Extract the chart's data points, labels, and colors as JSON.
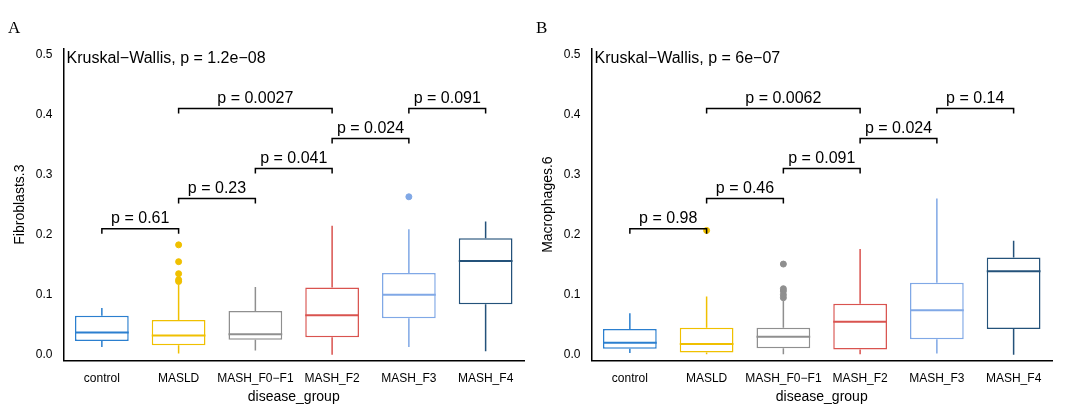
{
  "chart_data": [
    {
      "type": "box",
      "title": "A",
      "xlabel": "disease_group",
      "ylabel": "Fibroblasts.3",
      "categories": [
        "control",
        "MASLD",
        "MASH_F0−F1",
        "MASH_F2",
        "MASH_F3",
        "MASH_F4"
      ],
      "colors": [
        "#2b7fcf",
        "#f0c000",
        "#8f8f8f",
        "#d9534f",
        "#80a8e6",
        "#24527a"
      ],
      "boxes": [
        {
          "low": 0.013,
          "q1": 0.023,
          "median": 0.037,
          "q3": 0.065,
          "high": 0.078
        },
        {
          "low": 0.002,
          "q1": 0.016,
          "median": 0.032,
          "q3": 0.058,
          "high": 0.117,
          "outliers": [
            0.122,
            0.125,
            0.135,
            0.155,
            0.183
          ]
        },
        {
          "low": 0.007,
          "q1": 0.025,
          "median": 0.034,
          "q3": 0.073,
          "high": 0.113
        },
        {
          "low": 0.0,
          "q1": 0.029,
          "median": 0.066,
          "q3": 0.112,
          "high": 0.215
        },
        {
          "low": 0.013,
          "q1": 0.061,
          "median": 0.1,
          "q3": 0.136,
          "high": 0.209,
          "outliers": [
            0.263
          ]
        },
        {
          "low": 0.006,
          "q1": 0.084,
          "median": 0.156,
          "q3": 0.194,
          "high": 0.222
        }
      ],
      "ylim": [
        -0.01,
        0.51
      ],
      "yticks": [
        {
          "value": 0,
          "label": "0.0"
        },
        {
          "value": 0.1,
          "label": "0.1"
        },
        {
          "value": 0.2,
          "label": "0.2"
        },
        {
          "value": 0.3,
          "label": "0.3"
        },
        {
          "value": 0.4,
          "label": "0.4"
        },
        {
          "value": 0.5,
          "label": "0.5"
        }
      ],
      "grid": false,
      "legend": false,
      "annotations": [
        "Kruskal−Wallis, p = 1.2e−08",
        "p = 0.61",
        "p = 0.23",
        "p = 0.041",
        "p = 0.024",
        "p = 0.091",
        "p = 0.0027"
      ]
    },
    {
      "type": "box",
      "title": "B",
      "xlabel": "disease_group",
      "ylabel": "Macrophages.6",
      "categories": [
        "control",
        "MASLD",
        "MASH_F0−F1",
        "MASH_F2",
        "MASH_F3",
        "MASH_F4"
      ],
      "colors": [
        "#2b7fcf",
        "#f0c000",
        "#8f8f8f",
        "#d9534f",
        "#80a8e6",
        "#24527a"
      ],
      "boxes": [
        {
          "low": 0.003,
          "q1": 0.01,
          "median": 0.02,
          "q3": 0.043,
          "high": 0.069
        },
        {
          "low": 0.001,
          "q1": 0.004,
          "median": 0.018,
          "q3": 0.045,
          "high": 0.097,
          "outliers": [
            0.207
          ]
        },
        {
          "low": 0.001,
          "q1": 0.011,
          "median": 0.03,
          "q3": 0.045,
          "high": 0.09,
          "outliers": [
            0.095,
            0.1,
            0.106,
            0.11,
            0.151
          ]
        },
        {
          "low": 0.001,
          "q1": 0.009,
          "median": 0.055,
          "q3": 0.085,
          "high": 0.176
        },
        {
          "low": 0.002,
          "q1": 0.026,
          "median": 0.074,
          "q3": 0.12,
          "high": 0.26
        },
        {
          "low": 0.0,
          "q1": 0.043,
          "median": 0.139,
          "q3": 0.162,
          "high": 0.19
        }
      ],
      "ylim": [
        -0.01,
        0.51
      ],
      "yticks": [
        {
          "value": 0,
          "label": "0.0"
        },
        {
          "value": 0.1,
          "label": "0.1"
        },
        {
          "value": 0.2,
          "label": "0.2"
        },
        {
          "value": 0.3,
          "label": "0.3"
        },
        {
          "value": 0.4,
          "label": "0.4"
        },
        {
          "value": 0.5,
          "label": "0.5"
        }
      ],
      "grid": false,
      "legend": false,
      "annotations": [
        "Kruskal−Wallis, p = 6e−07",
        "p = 0.98",
        "p = 0.46",
        "p = 0.091",
        "p = 0.024",
        "p = 0.14",
        "p = 0.0062"
      ]
    }
  ]
}
